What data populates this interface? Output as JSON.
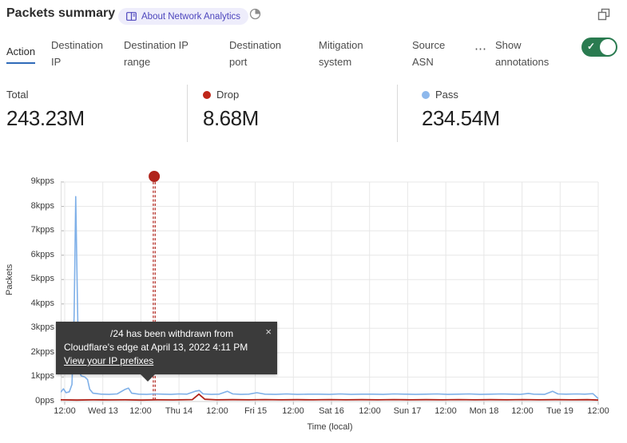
{
  "header": {
    "title": "Packets summary",
    "badge_label": "About Network Analytics",
    "icons": {
      "book": "book-icon",
      "pie": "time-period-icon",
      "window": "pop-out-icon"
    }
  },
  "tabs": [
    {
      "label": "Action",
      "active": true
    },
    {
      "label": "Destination IP",
      "active": false
    },
    {
      "label": "Destination IP range",
      "active": false
    },
    {
      "label": "Destination port",
      "active": false
    },
    {
      "label": "Mitigation system",
      "active": false
    },
    {
      "label": "Source ASN",
      "active": false
    }
  ],
  "more_tabs_label": "⋯",
  "annotations_toggle": {
    "label": "Show annotations",
    "enabled": true,
    "on_color": "#2a7b50"
  },
  "stats": [
    {
      "label": "Total",
      "value": "243.23M",
      "dot_color": null
    },
    {
      "label": "Drop",
      "value": "8.68M",
      "dot_color": "#bf2619"
    },
    {
      "label": "Pass",
      "value": "234.54M",
      "dot_color": "#8db8ec"
    }
  ],
  "chart_data": {
    "type": "line",
    "title": "Packets summary",
    "ylabel": "Packets",
    "xlabel": "Time (local)",
    "y_unit": "kpps",
    "ylim": [
      0,
      9
    ],
    "grid": true,
    "yticks": [
      "0pps",
      "1kpps",
      "2kpps",
      "3kpps",
      "4kpps",
      "5kpps",
      "6kpps",
      "7kpps",
      "8kpps",
      "9kpps"
    ],
    "xticks": [
      "12:00",
      "Wed 13",
      "12:00",
      "Thu 14",
      "12:00",
      "Fri 15",
      "12:00",
      "Sat 16",
      "12:00",
      "Sun 17",
      "12:00",
      "Mon 18",
      "12:00",
      "Tue 19",
      "12:00"
    ],
    "series": [
      {
        "name": "Pass",
        "color": "#7fb0e8",
        "total": "234.54M",
        "points": [
          [
            0,
            0.38
          ],
          [
            0.5,
            0.52
          ],
          [
            1.0,
            0.36
          ],
          [
            1.6,
            0.4
          ],
          [
            2.1,
            0.7
          ],
          [
            2.5,
            3.5
          ],
          [
            2.8,
            8.4
          ],
          [
            3.1,
            4.2
          ],
          [
            3.35,
            1.3
          ],
          [
            3.8,
            1.05
          ],
          [
            4.5,
            1.0
          ],
          [
            5.0,
            0.9
          ],
          [
            5.4,
            0.5
          ],
          [
            6.0,
            0.34
          ],
          [
            7.5,
            0.3
          ],
          [
            9.0,
            0.29
          ],
          [
            10.5,
            0.31
          ],
          [
            12.0,
            0.5
          ],
          [
            12.6,
            0.55
          ],
          [
            13.2,
            0.34
          ],
          [
            14.5,
            0.3
          ],
          [
            16.0,
            0.29
          ],
          [
            17.4,
            0.31
          ],
          [
            19.0,
            0.3
          ],
          [
            20.5,
            0.29
          ],
          [
            22.0,
            0.31
          ],
          [
            23.5,
            0.3
          ],
          [
            25.0,
            0.42
          ],
          [
            25.8,
            0.45
          ],
          [
            26.5,
            0.31
          ],
          [
            28.0,
            0.29
          ],
          [
            29.5,
            0.3
          ],
          [
            31.0,
            0.42
          ],
          [
            32.0,
            0.31
          ],
          [
            33.5,
            0.29
          ],
          [
            35.0,
            0.3
          ],
          [
            36.5,
            0.36
          ],
          [
            38.0,
            0.3
          ],
          [
            40.0,
            0.29
          ],
          [
            42.0,
            0.31
          ],
          [
            44.0,
            0.29
          ],
          [
            46.0,
            0.3
          ],
          [
            48.0,
            0.3
          ],
          [
            50.0,
            0.29
          ],
          [
            52.0,
            0.31
          ],
          [
            54.0,
            0.29
          ],
          [
            56.0,
            0.3
          ],
          [
            58.0,
            0.3
          ],
          [
            60.0,
            0.29
          ],
          [
            62.0,
            0.31
          ],
          [
            64.0,
            0.3
          ],
          [
            66.0,
            0.29
          ],
          [
            68.0,
            0.3
          ],
          [
            70.0,
            0.31
          ],
          [
            72.0,
            0.29
          ],
          [
            74.0,
            0.3
          ],
          [
            76.0,
            0.31
          ],
          [
            78.0,
            0.29
          ],
          [
            80.0,
            0.3
          ],
          [
            82.0,
            0.31
          ],
          [
            84.0,
            0.3
          ],
          [
            85.5,
            0.29
          ],
          [
            87.0,
            0.33
          ],
          [
            88.0,
            0.3
          ],
          [
            90.0,
            0.29
          ],
          [
            91.5,
            0.42
          ],
          [
            92.5,
            0.31
          ],
          [
            94.0,
            0.3
          ],
          [
            96.0,
            0.31
          ],
          [
            97.5,
            0.3
          ],
          [
            99.0,
            0.32
          ],
          [
            99.7,
            0.18
          ],
          [
            100,
            0.12
          ]
        ]
      },
      {
        "name": "Drop",
        "color": "#b0241a",
        "total": "8.68M",
        "points": [
          [
            0,
            0.07
          ],
          [
            3,
            0.06
          ],
          [
            6,
            0.07
          ],
          [
            9,
            0.065
          ],
          [
            12,
            0.07
          ],
          [
            15,
            0.06
          ],
          [
            18,
            0.07
          ],
          [
            21,
            0.065
          ],
          [
            24.5,
            0.08
          ],
          [
            25.7,
            0.3
          ],
          [
            26.8,
            0.09
          ],
          [
            29,
            0.07
          ],
          [
            32,
            0.075
          ],
          [
            35,
            0.07
          ],
          [
            38,
            0.08
          ],
          [
            41,
            0.07
          ],
          [
            44,
            0.075
          ],
          [
            47,
            0.07
          ],
          [
            50,
            0.08
          ],
          [
            53,
            0.07
          ],
          [
            56,
            0.075
          ],
          [
            59,
            0.07
          ],
          [
            62,
            0.08
          ],
          [
            65,
            0.07
          ],
          [
            68,
            0.075
          ],
          [
            71,
            0.07
          ],
          [
            74,
            0.08
          ],
          [
            77,
            0.07
          ],
          [
            80,
            0.075
          ],
          [
            83,
            0.07
          ],
          [
            86,
            0.08
          ],
          [
            89,
            0.07
          ],
          [
            92,
            0.075
          ],
          [
            95,
            0.07
          ],
          [
            98,
            0.075
          ],
          [
            100,
            0.06
          ]
        ]
      }
    ],
    "annotation": {
      "x_percent": 17.4,
      "marker_color": "#b0231b",
      "tooltip": {
        "line1": "/24 has been withdrawn from",
        "line2": "Cloudflare's edge at April 13, 2022 4:11 PM",
        "link": "View your IP prefixes",
        "close": "×"
      }
    }
  }
}
